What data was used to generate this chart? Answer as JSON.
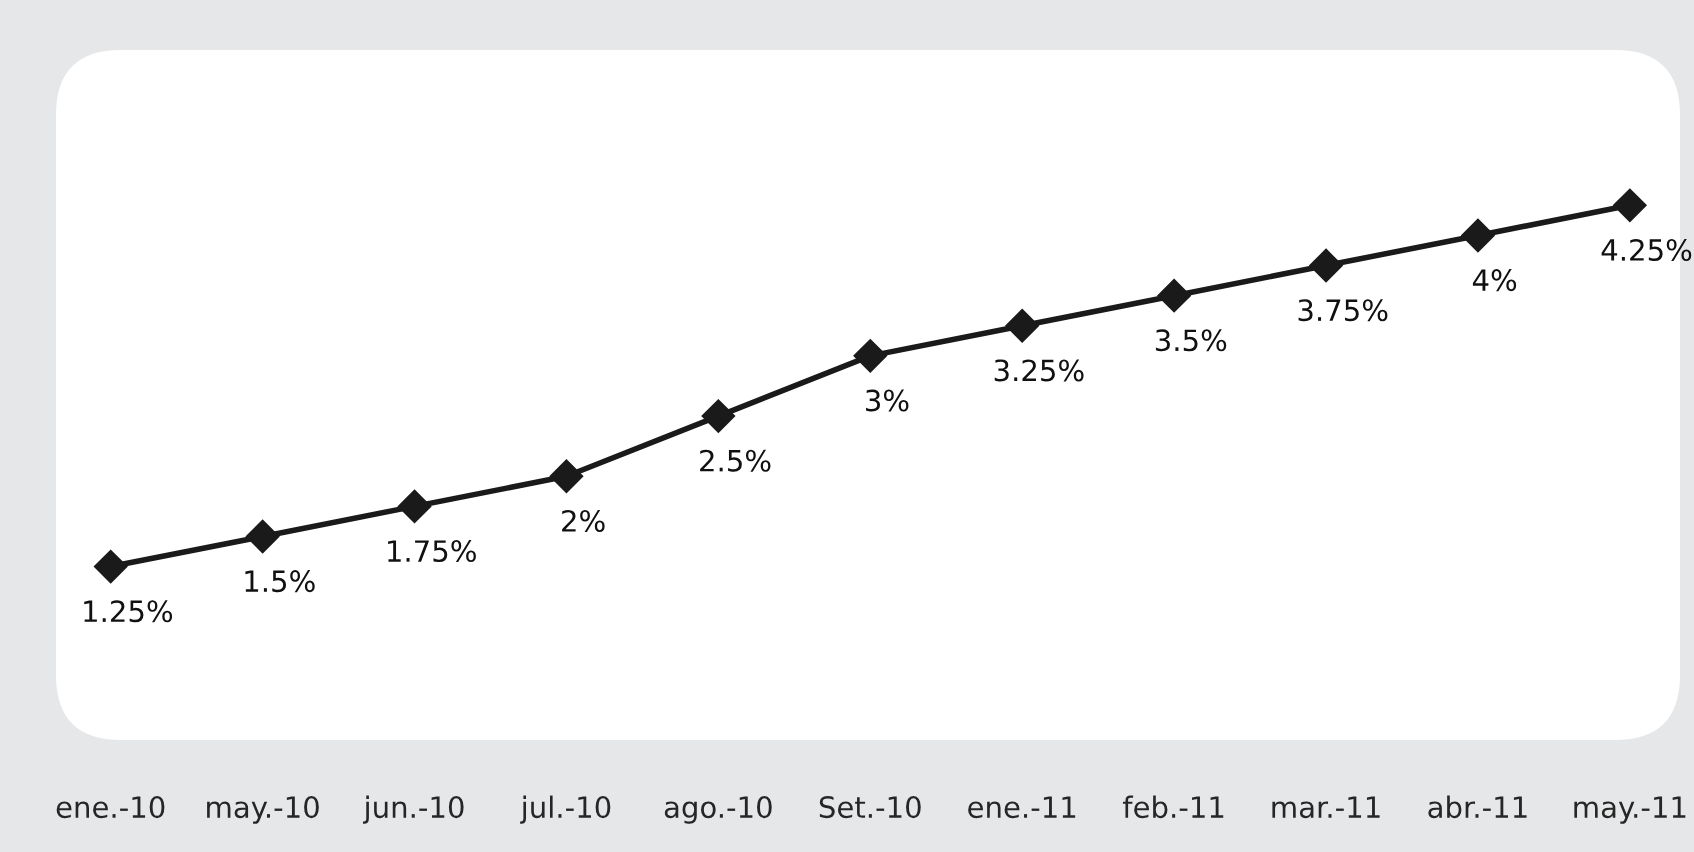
{
  "chart_data": {
    "type": "line",
    "categories": [
      "ene.-10",
      "may.-10",
      "jun.-10",
      "jul.-10",
      "ago.-10",
      "Set.-10",
      "ene.-11",
      "feb.-11",
      "mar.-11",
      "abr.-11",
      "may.-11"
    ],
    "series": [
      {
        "color": "#1a1a1a",
        "values": [
          1.25,
          1.5,
          1.75,
          2,
          2.5,
          3,
          3.25,
          3.5,
          3.75,
          4,
          4.25
        ],
        "value_labels": [
          "1.25%",
          "1.5%",
          "1.75%",
          "2%",
          "2.5%",
          "3%",
          "3.25%",
          "3.5%",
          "3.75%",
          "4%",
          "4.25%"
        ]
      }
    ],
    "marker": "diamond",
    "line_style": "solid",
    "grid": false,
    "legend": false
  }
}
